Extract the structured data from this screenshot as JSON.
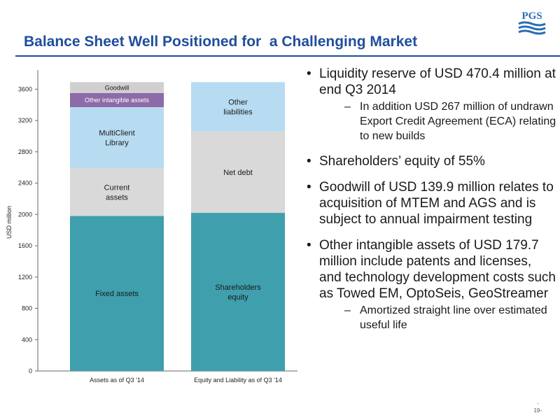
{
  "header": {
    "title": "Balance Sheet Well Positioned for  a Challenging Market",
    "logo_text": "PGS"
  },
  "colors": {
    "title_blue": "#1f4e9c",
    "fixed_assets": "#3f9fad",
    "current_assets": "#d9d9d9",
    "multiclient": "#b7dcf2",
    "other_intangible": "#8d6aa8",
    "goodwill": "#d0d0d0"
  },
  "chart_data": {
    "type": "bar",
    "stacked": true,
    "ylabel": "USD million",
    "ylim": [
      0,
      3800
    ],
    "yticks": [
      0,
      400,
      800,
      1200,
      1600,
      2000,
      2400,
      2800,
      3200,
      3600
    ],
    "grid": false,
    "categories": [
      "Assets as of Q3 '14",
      "Equity and Liability as of Q3 '14"
    ],
    "stacks": [
      [
        {
          "label": "Fixed assets",
          "value": 1980,
          "color": "#3f9fad"
        },
        {
          "label": "Current\nassets",
          "value": 610,
          "color": "#d9d9d9"
        },
        {
          "label": "MultiClient\nLibrary",
          "value": 780,
          "color": "#b7dcf2"
        },
        {
          "label": "Other intangible assets",
          "value": 180,
          "color": "#8d6aa8"
        },
        {
          "label": "Goodwill",
          "value": 140,
          "color": "#d0d0d0"
        }
      ],
      [
        {
          "label": "Shareholders\nequity",
          "value": 2020,
          "color": "#3f9fad"
        },
        {
          "label": "Net debt",
          "value": 1040,
          "color": "#d9d9d9"
        },
        {
          "label": "Other\nliabilities",
          "value": 630,
          "color": "#b7dcf2"
        }
      ]
    ]
  },
  "bullets": [
    {
      "text": "Liquidity reserve of USD 470.4 million at end Q3 2014",
      "sub": [
        "In addition USD 267 million of undrawn Export Credit Agreement (ECA) relating to new builds"
      ]
    },
    {
      "text": "Shareholders’ equity of 55%",
      "sub": []
    },
    {
      "text": "Goodwill of USD 139.9 million relates to acquisition of MTEM and AGS and is subject to annual impairment testing",
      "sub": []
    },
    {
      "text": "Other intangible assets of USD 179.7 million include patents and licenses, and technology development costs such as Towed EM, OptoSeis, GeoStreamer",
      "sub": [
        "Amortized straight line over estimated useful life"
      ]
    }
  ],
  "footer": {
    "page": "19-",
    "dot": "-"
  }
}
